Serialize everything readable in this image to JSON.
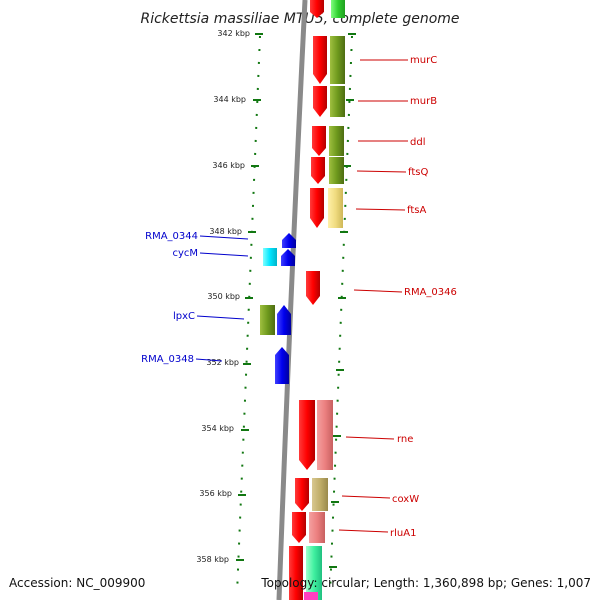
{
  "title": "Rickettsia massiliae MTU5, complete genome",
  "accession": "Accession: NC_009900",
  "topology": "Topology: circular; Length: 1,360,898 bp; Genes: 1,007",
  "colors": {
    "backbone": "#888888",
    "ticks": "#117711",
    "reverse_label": "#0000cc",
    "forward_label": "#cc0000"
  },
  "kbp_labels": [
    "342 kbp",
    "344 kbp",
    "346 kbp",
    "348 kbp",
    "350 kbp",
    "352 kbp",
    "354 kbp",
    "356 kbp",
    "358 kbp"
  ],
  "gene_labels_forward": [
    "murC",
    "murB",
    "ddl",
    "ftsQ",
    "ftsA",
    "RMA_0346",
    "rne",
    "coxW",
    "rluA1"
  ],
  "gene_labels_reverse": [
    "RMA_0344",
    "cycM",
    "lpxC",
    "RMA_0348"
  ]
}
